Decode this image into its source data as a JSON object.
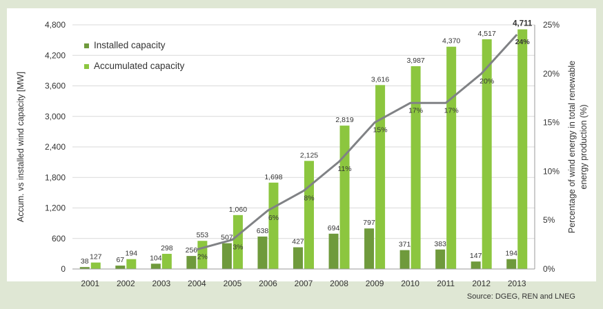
{
  "chart_data": {
    "type": "bar",
    "categories": [
      "2001",
      "2002",
      "2003",
      "2004",
      "2005",
      "2006",
      "2007",
      "2008",
      "2009",
      "2010",
      "2011",
      "2012",
      "2013"
    ],
    "series": [
      {
        "name": "Installed capacity",
        "axis": "left",
        "color": "#6f9a3c",
        "values": [
          38,
          67,
          104,
          256,
          507,
          638,
          427,
          694,
          797,
          371,
          383,
          147,
          194
        ],
        "labels": [
          "38",
          "67",
          "104",
          "256",
          "507",
          "638",
          "427",
          "694",
          "797",
          "371",
          "383",
          "147",
          "194"
        ]
      },
      {
        "name": "Accumulated capacity",
        "axis": "left",
        "color": "#8cc63f",
        "values": [
          127,
          194,
          298,
          553,
          1060,
          1698,
          2125,
          2819,
          3616,
          3987,
          4370,
          4517,
          4711
        ],
        "labels": [
          "127",
          "194",
          "298",
          "553",
          "1,060",
          "1,698",
          "2,125",
          "2,819",
          "3,616",
          "3,987",
          "4,370",
          "4,517",
          "4,711"
        ]
      },
      {
        "name": "Percentage of wind energy",
        "type": "line",
        "axis": "right",
        "color": "#808285",
        "values": [
          null,
          null,
          null,
          2,
          3,
          6,
          8,
          11,
          15,
          17,
          17,
          20,
          24
        ],
        "labels": [
          "",
          "",
          "",
          "2%",
          "3%",
          "6%",
          "8%",
          "11%",
          "15%",
          "17%",
          "17%",
          "20%",
          "24%"
        ]
      }
    ],
    "ylabel": "Accum. vs installed wind capacity [MW]",
    "ylim": [
      0,
      4800
    ],
    "yticks": [
      "0",
      "600",
      "1,200",
      "1,800",
      "2,400",
      "3,000",
      "3,600",
      "4,200",
      "4,800"
    ],
    "y2label_line1": "Percentage of wind energy in total renewable",
    "y2label_line2": "energy production (%)",
    "y2lim": [
      0,
      25
    ],
    "y2ticks": [
      "0%",
      "5%",
      "10%",
      "15%",
      "20%",
      "25%"
    ],
    "grid": true,
    "legend_position": "top-left"
  },
  "source": "Source: DGEG, REN and LNEG"
}
